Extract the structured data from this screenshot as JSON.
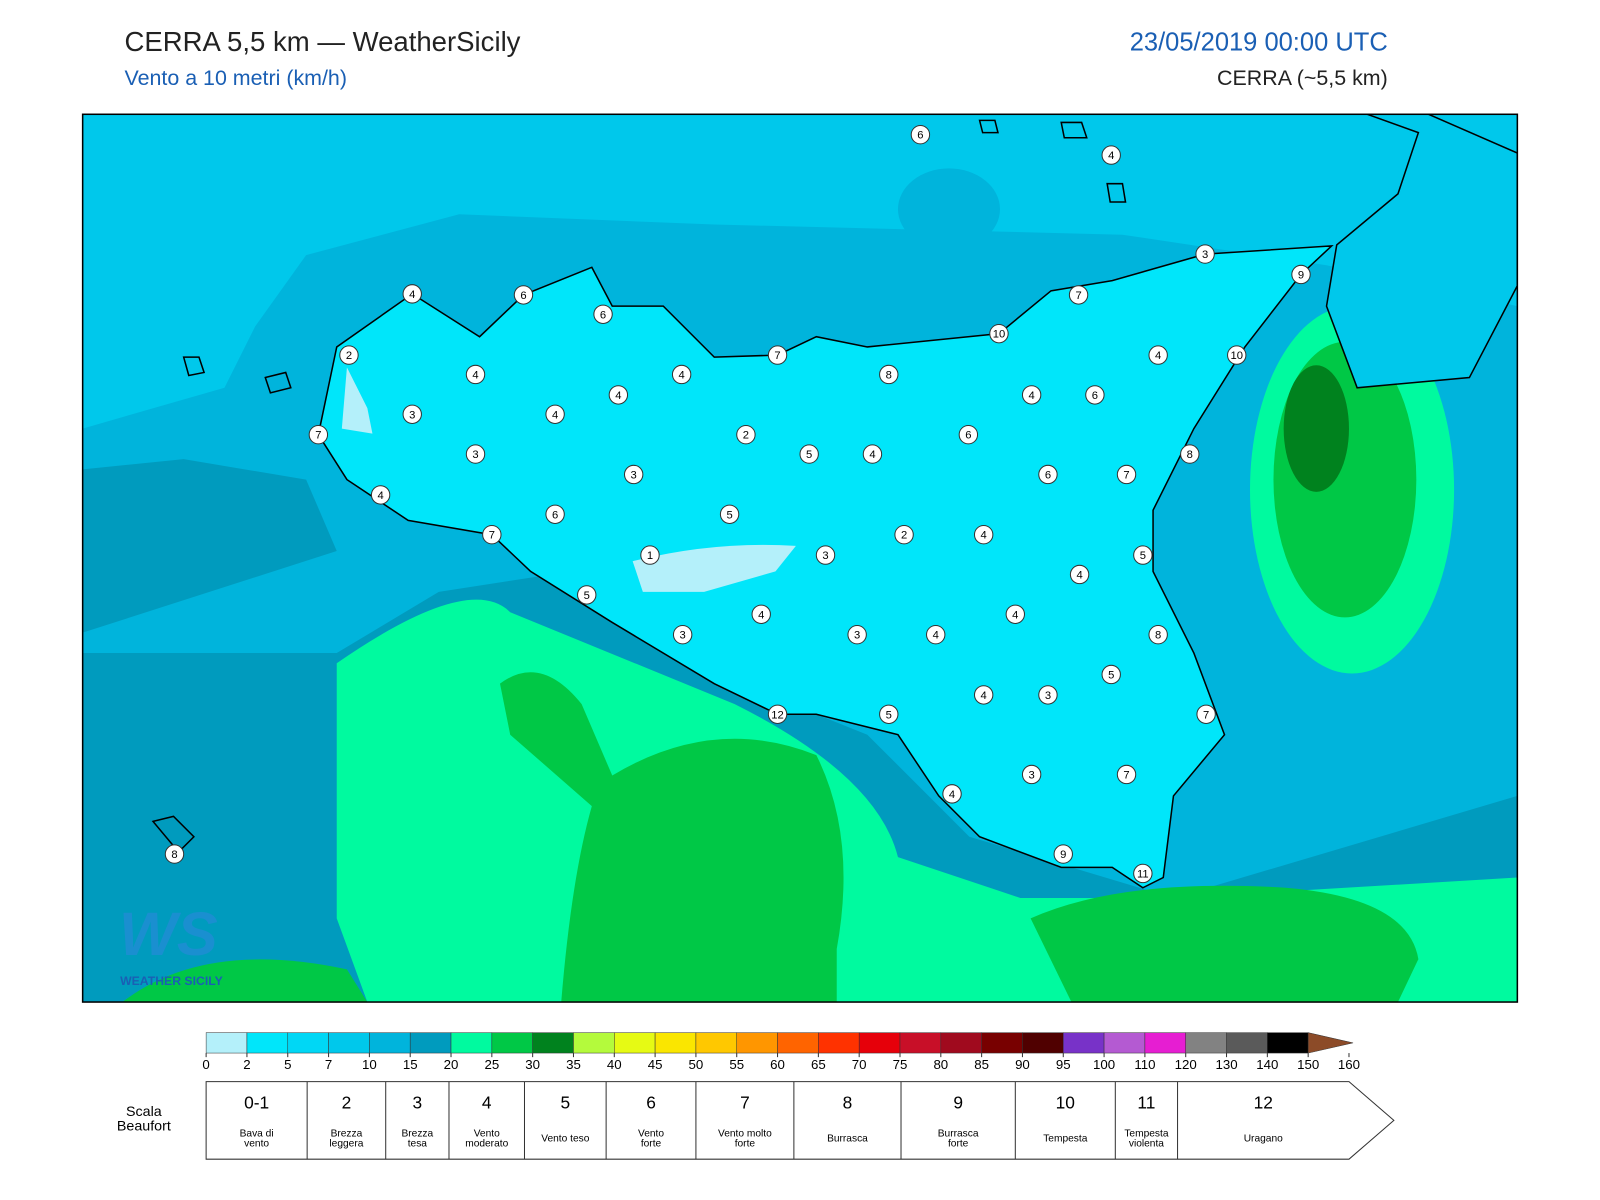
{
  "header": {
    "title": "CERRA 5,5 km — WeatherSicily",
    "subtitle": "Vento a 10 metri (km/h)",
    "date": "23/05/2019 00:00 UTC",
    "model": "CERRA (~5,5 km)"
  },
  "stations": [
    6,
    4,
    3,
    9,
    4,
    6,
    6,
    7,
    10,
    7,
    2,
    4,
    10,
    4,
    4,
    8,
    4,
    4,
    6,
    3,
    4,
    7,
    2,
    6,
    3,
    5,
    4,
    8,
    3,
    6,
    7,
    4,
    6,
    5,
    7,
    2,
    4,
    1,
    3,
    5,
    4,
    5,
    4,
    4,
    3,
    3,
    4,
    8,
    5,
    4,
    3,
    12,
    5,
    7,
    3,
    7,
    4,
    8,
    9,
    11
  ],
  "logo": {
    "mark": "WS",
    "text": "WEATHER SICILY"
  },
  "colorbar": {
    "ticks": [
      0,
      2,
      5,
      7,
      10,
      15,
      20,
      25,
      30,
      35,
      40,
      45,
      50,
      55,
      60,
      65,
      70,
      75,
      80,
      85,
      90,
      95,
      100,
      110,
      120,
      130,
      140,
      150,
      160
    ],
    "colors": [
      "#b4f0fa",
      "#00e6fa",
      "#00d7f5",
      "#00c8eb",
      "#00b4dc",
      "#009bbe",
      "#00fa9f",
      "#00c846",
      "#00821e",
      "#b4fa3c",
      "#e6fa14",
      "#fae600",
      "#ffc800",
      "#ff9600",
      "#ff6400",
      "#ff3200",
      "#e6000a",
      "#c80f28",
      "#a00a1e",
      "#780000",
      "#500000",
      "#7832c8",
      "#b45ad2",
      "#e61ed2",
      "#828282",
      "#5a5a5a",
      "#000000",
      "#8c4b28",
      "#c8824b"
    ]
  },
  "beaufort": {
    "caption": [
      "Scala",
      "Beaufort"
    ],
    "scale": [
      {
        "force": "0-1",
        "label": [
          "Bava di",
          "vento"
        ]
      },
      {
        "force": "2",
        "label": [
          "Brezza",
          "leggera"
        ]
      },
      {
        "force": "3",
        "label": [
          "Brezza",
          "tesa"
        ]
      },
      {
        "force": "4",
        "label": [
          "Vento",
          "moderato"
        ]
      },
      {
        "force": "5",
        "label": [
          "Vento teso"
        ]
      },
      {
        "force": "6",
        "label": [
          "Vento",
          "forte"
        ]
      },
      {
        "force": "7",
        "label": [
          "Vento molto",
          "forte"
        ]
      },
      {
        "force": "8",
        "label": [
          "Burrasca"
        ]
      },
      {
        "force": "9",
        "label": [
          "Burrasca",
          "forte"
        ]
      },
      {
        "force": "10",
        "label": [
          "Tempesta"
        ]
      },
      {
        "force": "11",
        "label": [
          "Tempesta",
          "violenta"
        ]
      },
      {
        "force": "12",
        "label": [
          "Uragano"
        ]
      }
    ]
  }
}
